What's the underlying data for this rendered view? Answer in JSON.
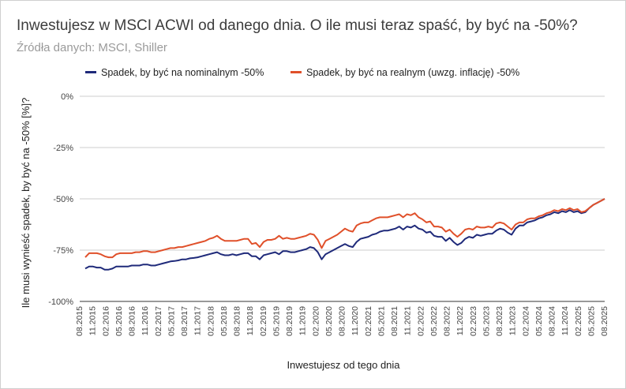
{
  "title": "Inwestujesz w MSCI ACWI od danego dnia. O ile musi teraz spaść, by być na -50%?",
  "subtitle": "Źródła danych: MSCI, Shiller",
  "chart_data": {
    "type": "line",
    "xlabel": "Inwestujesz od tego dnia",
    "ylabel": "Ile musi wynieść spadek, by być na -50% [%]?",
    "ylim": [
      -100,
      0
    ],
    "y_ticks": [
      "0%",
      "-25%",
      "-50%",
      "-75%",
      "-100%"
    ],
    "grid": "horizontal",
    "legend_position": "top",
    "x_ticks": [
      "08.2015",
      "11.2015",
      "02.2016",
      "05.2016",
      "08.2016",
      "11.2016",
      "02.2017",
      "05.2017",
      "08.2017",
      "11.2017",
      "02.2018",
      "05.2018",
      "08.2018",
      "11.2018",
      "02.2019",
      "05.2019",
      "08.2019",
      "11.2019",
      "02.2020",
      "05.2020",
      "08.2020",
      "11.2020",
      "02.2021",
      "05.2021",
      "08.2021",
      "11.2021",
      "02.2022",
      "05.2022",
      "08.2022",
      "11.2022",
      "02.2023",
      "05.2023",
      "08.2023",
      "11.2023",
      "02.2024",
      "05.2024",
      "08.2024",
      "11.2024",
      "02.2025",
      "05.2025",
      "08.2025"
    ],
    "series": [
      {
        "name": "Spadek, by być na nominalnym -50%",
        "color": "#1f2a7a",
        "values": [
          -84,
          -83,
          -83,
          -83.5,
          -83.5,
          -84.5,
          -84.5,
          -84,
          -83,
          -83,
          -83,
          -83,
          -82.5,
          -82.5,
          -82.5,
          -82,
          -82,
          -82.5,
          -82.5,
          -82,
          -81.5,
          -81,
          -80.5,
          -80.3,
          -80,
          -79.5,
          -79.5,
          -79,
          -78.8,
          -78.5,
          -78,
          -77.5,
          -77,
          -76.5,
          -76,
          -77,
          -77.5,
          -77.5,
          -77,
          -77.5,
          -77,
          -76.5,
          -76.5,
          -78,
          -78,
          -79.5,
          -77.5,
          -77,
          -76.5,
          -76,
          -77,
          -75.5,
          -75.5,
          -76,
          -76,
          -75.5,
          -75,
          -74.5,
          -73.5,
          -74,
          -76,
          -79.5,
          -77,
          -76,
          -75,
          -74,
          -73,
          -72,
          -73,
          -73.5,
          -71,
          -69.5,
          -69,
          -68.5,
          -67.5,
          -67,
          -66,
          -65.5,
          -65.5,
          -65,
          -64.5,
          -63.5,
          -65,
          -63.5,
          -64,
          -63,
          -64.5,
          -65,
          -66.5,
          -66,
          -68,
          -68.5,
          -68.5,
          -70.5,
          -69,
          -71,
          -72.5,
          -71.5,
          -69.5,
          -68.5,
          -69,
          -67.5,
          -68,
          -67.5,
          -67,
          -67,
          -65.5,
          -64.5,
          -65,
          -66.5,
          -67.5,
          -64.5,
          -63,
          -63,
          -61.5,
          -61,
          -60.5,
          -59.5,
          -59,
          -58,
          -57.5,
          -56.5,
          -57,
          -56,
          -56.5,
          -55.5,
          -56.5,
          -56,
          -57,
          -56.5,
          -54.5,
          -53,
          -52,
          -51,
          -50
        ]
      },
      {
        "name": "Spadek, by być na realnym (uwzg. inflację) -50%",
        "color": "#e0502a",
        "values": [
          -78.5,
          -76.5,
          -76.5,
          -76.5,
          -77,
          -78,
          -78.5,
          -78.5,
          -77,
          -76.5,
          -76.5,
          -76.5,
          -76.5,
          -76,
          -76,
          -75.5,
          -75.5,
          -76,
          -76,
          -75.5,
          -75,
          -74.5,
          -74,
          -74,
          -73.5,
          -73.5,
          -73,
          -72.5,
          -72,
          -71.5,
          -71,
          -70.5,
          -69.5,
          -69,
          -68,
          -69.5,
          -70.5,
          -70.5,
          -70.5,
          -70.5,
          -70,
          -69.5,
          -69.5,
          -72,
          -71.5,
          -73.5,
          -71,
          -70,
          -70,
          -69.5,
          -68,
          -69.5,
          -69,
          -69.5,
          -69.5,
          -69,
          -68.5,
          -68,
          -67,
          -67.5,
          -70,
          -74,
          -70.5,
          -69.5,
          -68.5,
          -67.5,
          -66,
          -64.5,
          -65.5,
          -66,
          -63,
          -62,
          -61.5,
          -61.5,
          -60.5,
          -59.5,
          -59,
          -59,
          -59,
          -58.5,
          -58,
          -57.5,
          -59,
          -57.5,
          -58,
          -57,
          -59,
          -60,
          -61.5,
          -61,
          -63.5,
          -63.5,
          -64,
          -66,
          -65,
          -67,
          -68.5,
          -67,
          -65,
          -64.5,
          -65,
          -63.5,
          -64,
          -64,
          -63.5,
          -64,
          -62,
          -61.5,
          -62,
          -63.5,
          -65,
          -62.5,
          -61.5,
          -61.5,
          -60,
          -59.5,
          -59.5,
          -58.5,
          -58,
          -57,
          -56.5,
          -55.5,
          -56,
          -55,
          -55.5,
          -54.5,
          -55.5,
          -55,
          -56.5,
          -56,
          -54.5,
          -53,
          -52,
          -51,
          -50
        ]
      }
    ]
  }
}
